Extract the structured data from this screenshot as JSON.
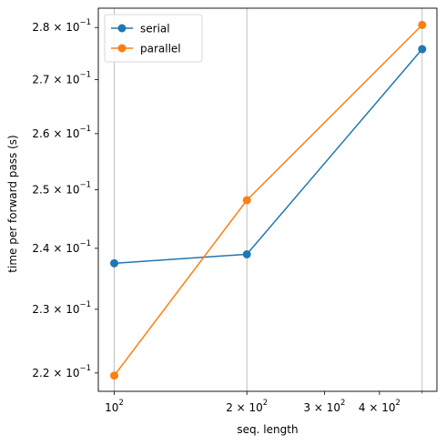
{
  "chart_data": {
    "type": "line",
    "xlabel": "seq. length",
    "ylabel": "time per forward pass (s)",
    "x_scale": "log",
    "y_scale": "log",
    "grid": "x-major",
    "legend_position": "upper left",
    "xlim": [
      92,
      540
    ],
    "ylim": [
      0.2172,
      0.2838
    ],
    "x": [
      100,
      200,
      500
    ],
    "x_ticks": [
      {
        "value": 100,
        "base": "10",
        "exp": "2"
      },
      {
        "value": 200,
        "base": "2 × 10",
        "exp": "2"
      },
      {
        "value": 300,
        "base": "3 × 10",
        "exp": "2"
      },
      {
        "value": 400,
        "base": "4 × 10",
        "exp": "2"
      }
    ],
    "y_ticks": [
      {
        "value": 0.22,
        "base": "2.2 × 10",
        "exp": "−1"
      },
      {
        "value": 0.23,
        "base": "2.3 × 10",
        "exp": "−1"
      },
      {
        "value": 0.24,
        "base": "2.4 × 10",
        "exp": "−1"
      },
      {
        "value": 0.25,
        "base": "2.5 × 10",
        "exp": "−1"
      },
      {
        "value": 0.26,
        "base": "2.6 × 10",
        "exp": "−1"
      },
      {
        "value": 0.27,
        "base": "2.7 × 10",
        "exp": "−1"
      },
      {
        "value": 0.28,
        "base": "2.8 × 10",
        "exp": "−1"
      }
    ],
    "series": [
      {
        "name": "serial",
        "color": "#1f77b4",
        "values": [
          0.2375,
          0.239,
          0.2758
        ]
      },
      {
        "name": "parallel",
        "color": "#ff7f0e",
        "values": [
          0.2196,
          0.2482,
          0.2805
        ]
      }
    ]
  }
}
